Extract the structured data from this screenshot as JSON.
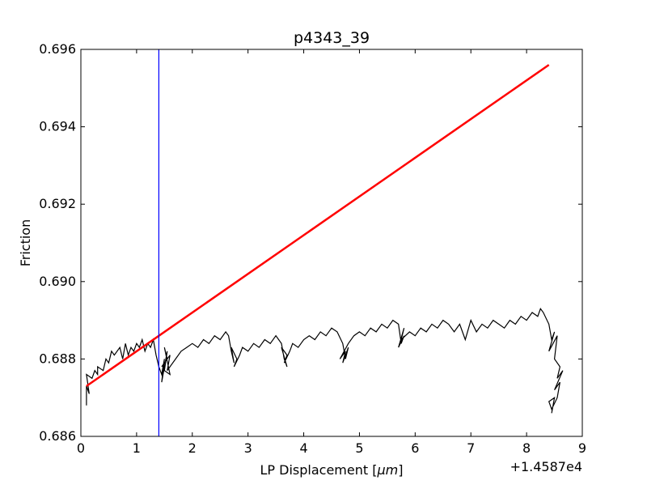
{
  "chart_data": {
    "type": "line",
    "title": "p4343_39",
    "xlabel": "LP Displacement [",
    "xlabel_math": "μm",
    "xlabel_close": "]",
    "ylabel": "Friction",
    "x_offset_text": "+1.4587e4",
    "xlim": [
      0,
      9
    ],
    "ylim": [
      0.686,
      0.696
    ],
    "x_ticks": [
      0,
      1,
      2,
      3,
      4,
      5,
      6,
      7,
      8,
      9
    ],
    "x_tick_labels": [
      "0",
      "1",
      "2",
      "3",
      "4",
      "5",
      "6",
      "7",
      "8",
      "9"
    ],
    "y_ticks": [
      0.686,
      0.688,
      0.69,
      0.692,
      0.694,
      0.696
    ],
    "y_tick_labels": [
      "0.686",
      "0.688",
      "0.690",
      "0.692",
      "0.694",
      "0.696"
    ],
    "grid": false,
    "colors": {
      "data": "#000000",
      "fit": "#ff0000",
      "marker": "#0000ff"
    },
    "series": [
      {
        "kind": "data",
        "x": [
          0.1,
          0.1,
          0.15,
          0.1,
          0.2,
          0.25,
          0.3,
          0.3,
          0.4,
          0.45,
          0.5,
          0.55,
          0.6,
          0.7,
          0.75,
          0.8,
          0.85,
          0.9,
          0.95,
          1.0,
          1.05,
          1.1,
          1.15,
          1.2,
          1.25,
          1.3,
          1.35,
          1.4,
          1.45,
          1.5,
          1.45,
          1.55,
          1.5,
          1.6,
          1.5,
          1.55,
          1.45,
          1.6,
          1.55,
          1.7,
          1.8,
          1.9,
          2.0,
          2.1,
          2.2,
          2.3,
          2.4,
          2.5,
          2.6,
          2.65,
          2.7,
          2.75,
          2.7,
          2.8,
          2.75,
          2.85,
          2.9,
          3.0,
          3.1,
          3.2,
          3.3,
          3.4,
          3.5,
          3.6,
          3.65,
          3.7,
          3.6,
          3.7,
          3.65,
          3.75,
          3.8,
          3.9,
          4.0,
          4.1,
          4.2,
          4.3,
          4.4,
          4.5,
          4.6,
          4.7,
          4.75,
          4.8,
          4.7,
          4.75,
          4.65,
          4.8,
          4.9,
          5.0,
          5.1,
          5.2,
          5.3,
          5.4,
          5.5,
          5.6,
          5.7,
          5.75,
          5.8,
          5.7,
          5.8,
          5.75,
          5.9,
          6.0,
          6.1,
          6.2,
          6.3,
          6.4,
          6.5,
          6.6,
          6.7,
          6.8,
          6.9,
          7.0,
          7.1,
          7.2,
          7.3,
          7.4,
          7.5,
          7.6,
          7.7,
          7.8,
          7.9,
          8.0,
          8.1,
          8.2,
          8.25,
          8.3,
          8.4,
          8.45,
          8.5,
          8.4,
          8.55,
          8.5,
          8.6,
          8.55,
          8.65,
          8.5,
          8.6,
          8.55,
          8.45,
          8.4,
          8.5,
          8.45
        ],
        "y": [
          0.6868,
          0.6873,
          0.6871,
          0.6876,
          0.6875,
          0.6877,
          0.6876,
          0.6878,
          0.6877,
          0.688,
          0.6879,
          0.6882,
          0.6881,
          0.6883,
          0.688,
          0.6884,
          0.6881,
          0.6883,
          0.6882,
          0.6884,
          0.6883,
          0.6885,
          0.6882,
          0.6884,
          0.6883,
          0.6885,
          0.6881,
          0.6878,
          0.6876,
          0.688,
          0.6874,
          0.6882,
          0.6877,
          0.6876,
          0.6883,
          0.688,
          0.6878,
          0.6881,
          0.6877,
          0.688,
          0.6882,
          0.6883,
          0.6884,
          0.6883,
          0.6885,
          0.6884,
          0.6886,
          0.6885,
          0.6887,
          0.6886,
          0.6882,
          0.6879,
          0.6883,
          0.688,
          0.6878,
          0.6881,
          0.6883,
          0.6882,
          0.6884,
          0.6883,
          0.6885,
          0.6884,
          0.6886,
          0.6884,
          0.688,
          0.6878,
          0.6883,
          0.6881,
          0.6879,
          0.6882,
          0.6884,
          0.6883,
          0.6885,
          0.6886,
          0.6885,
          0.6887,
          0.6886,
          0.6888,
          0.6887,
          0.6884,
          0.688,
          0.6883,
          0.6879,
          0.6882,
          0.688,
          0.6884,
          0.6886,
          0.6887,
          0.6886,
          0.6888,
          0.6887,
          0.6889,
          0.6888,
          0.689,
          0.6889,
          0.6884,
          0.6886,
          0.6883,
          0.6888,
          0.6885,
          0.6887,
          0.6886,
          0.6888,
          0.6887,
          0.6889,
          0.6888,
          0.689,
          0.6889,
          0.6887,
          0.6889,
          0.6885,
          0.689,
          0.6887,
          0.6889,
          0.6888,
          0.689,
          0.6889,
          0.6888,
          0.689,
          0.6889,
          0.6891,
          0.689,
          0.6892,
          0.6891,
          0.6893,
          0.6892,
          0.6889,
          0.6885,
          0.6887,
          0.6882,
          0.6886,
          0.688,
          0.6878,
          0.6875,
          0.6877,
          0.6872,
          0.6874,
          0.687,
          0.6867,
          0.6869,
          0.687,
          0.6866
        ]
      },
      {
        "kind": "fit",
        "x": [
          0.1,
          8.4
        ],
        "y": [
          0.6873,
          0.6956
        ]
      },
      {
        "kind": "marker",
        "x": [
          1.4,
          1.4
        ],
        "y": [
          0.686,
          0.696
        ]
      }
    ]
  }
}
